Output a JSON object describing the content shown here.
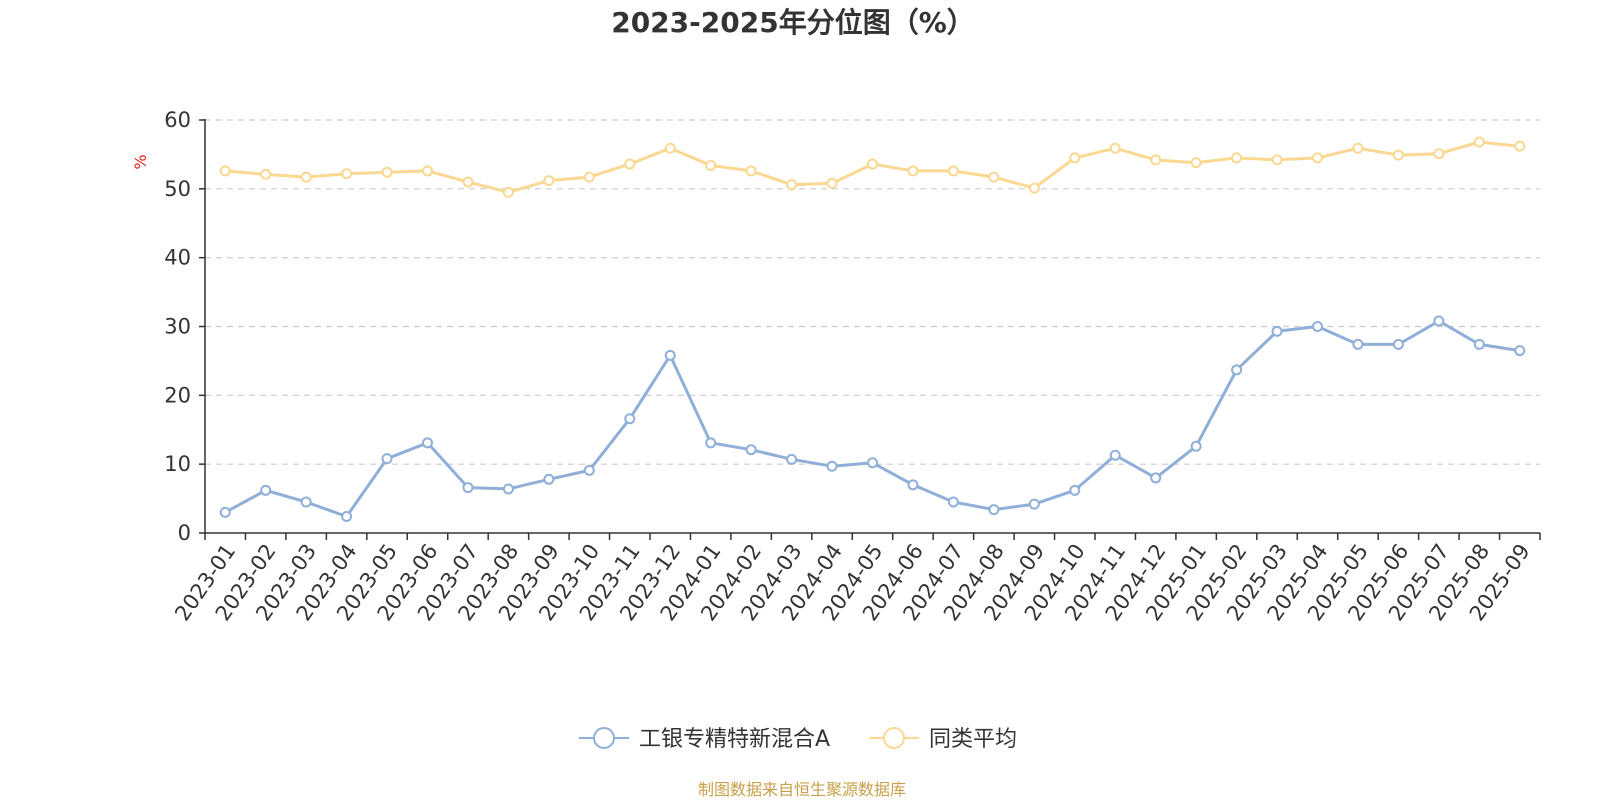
{
  "chart_data": {
    "type": "line",
    "title": "2023-2025年分位图（%）",
    "ylabel": "%",
    "xlabel": "",
    "ylim": [
      0,
      60
    ],
    "yticks": [
      "0",
      "10",
      "20",
      "30",
      "40",
      "50",
      "60"
    ],
    "grid": true,
    "legend_position": "bottom-center",
    "categories": [
      "2023-01",
      "2023-02",
      "2023-03",
      "2023-04",
      "2023-05",
      "2023-06",
      "2023-07",
      "2023-08",
      "2023-09",
      "2023-10",
      "2023-11",
      "2023-12",
      "2024-01",
      "2024-02",
      "2024-03",
      "2024-04",
      "2024-05",
      "2024-06",
      "2024-07",
      "2024-08",
      "2024-09",
      "2024-10",
      "2024-11",
      "2024-12",
      "2025-01",
      "2025-02",
      "2025-03",
      "2025-04",
      "2025-05",
      "2025-06",
      "2025-07",
      "2025-08",
      "2025-09"
    ],
    "series": [
      {
        "name": "工银专精特新混合A",
        "color": "#8fafd9",
        "values": [
          3.0,
          6.2,
          4.5,
          2.4,
          10.8,
          13.1,
          6.6,
          6.4,
          7.8,
          9.1,
          16.6,
          25.8,
          13.1,
          12.1,
          10.7,
          9.7,
          10.2,
          7.0,
          4.5,
          3.4,
          4.2,
          6.2,
          11.3,
          8.0,
          12.6,
          23.7,
          29.3,
          30.0,
          27.4,
          27.4,
          30.8,
          27.4,
          26.5
        ]
      },
      {
        "name": "同类平均",
        "color": "#fad892",
        "values": [
          52.6,
          52.1,
          51.7,
          52.2,
          52.4,
          52.6,
          51.0,
          49.5,
          51.2,
          51.7,
          53.6,
          55.9,
          53.4,
          52.6,
          50.6,
          50.8,
          53.6,
          52.6,
          52.6,
          51.7,
          50.1,
          54.5,
          55.9,
          54.2,
          53.8,
          54.5,
          54.2,
          54.5,
          55.9,
          54.9,
          55.1,
          56.8,
          56.2
        ]
      }
    ]
  },
  "source": {
    "text": "制图数据来自恒生聚源数据库",
    "color": "#c8a04a"
  },
  "unit_color": "#e02020"
}
